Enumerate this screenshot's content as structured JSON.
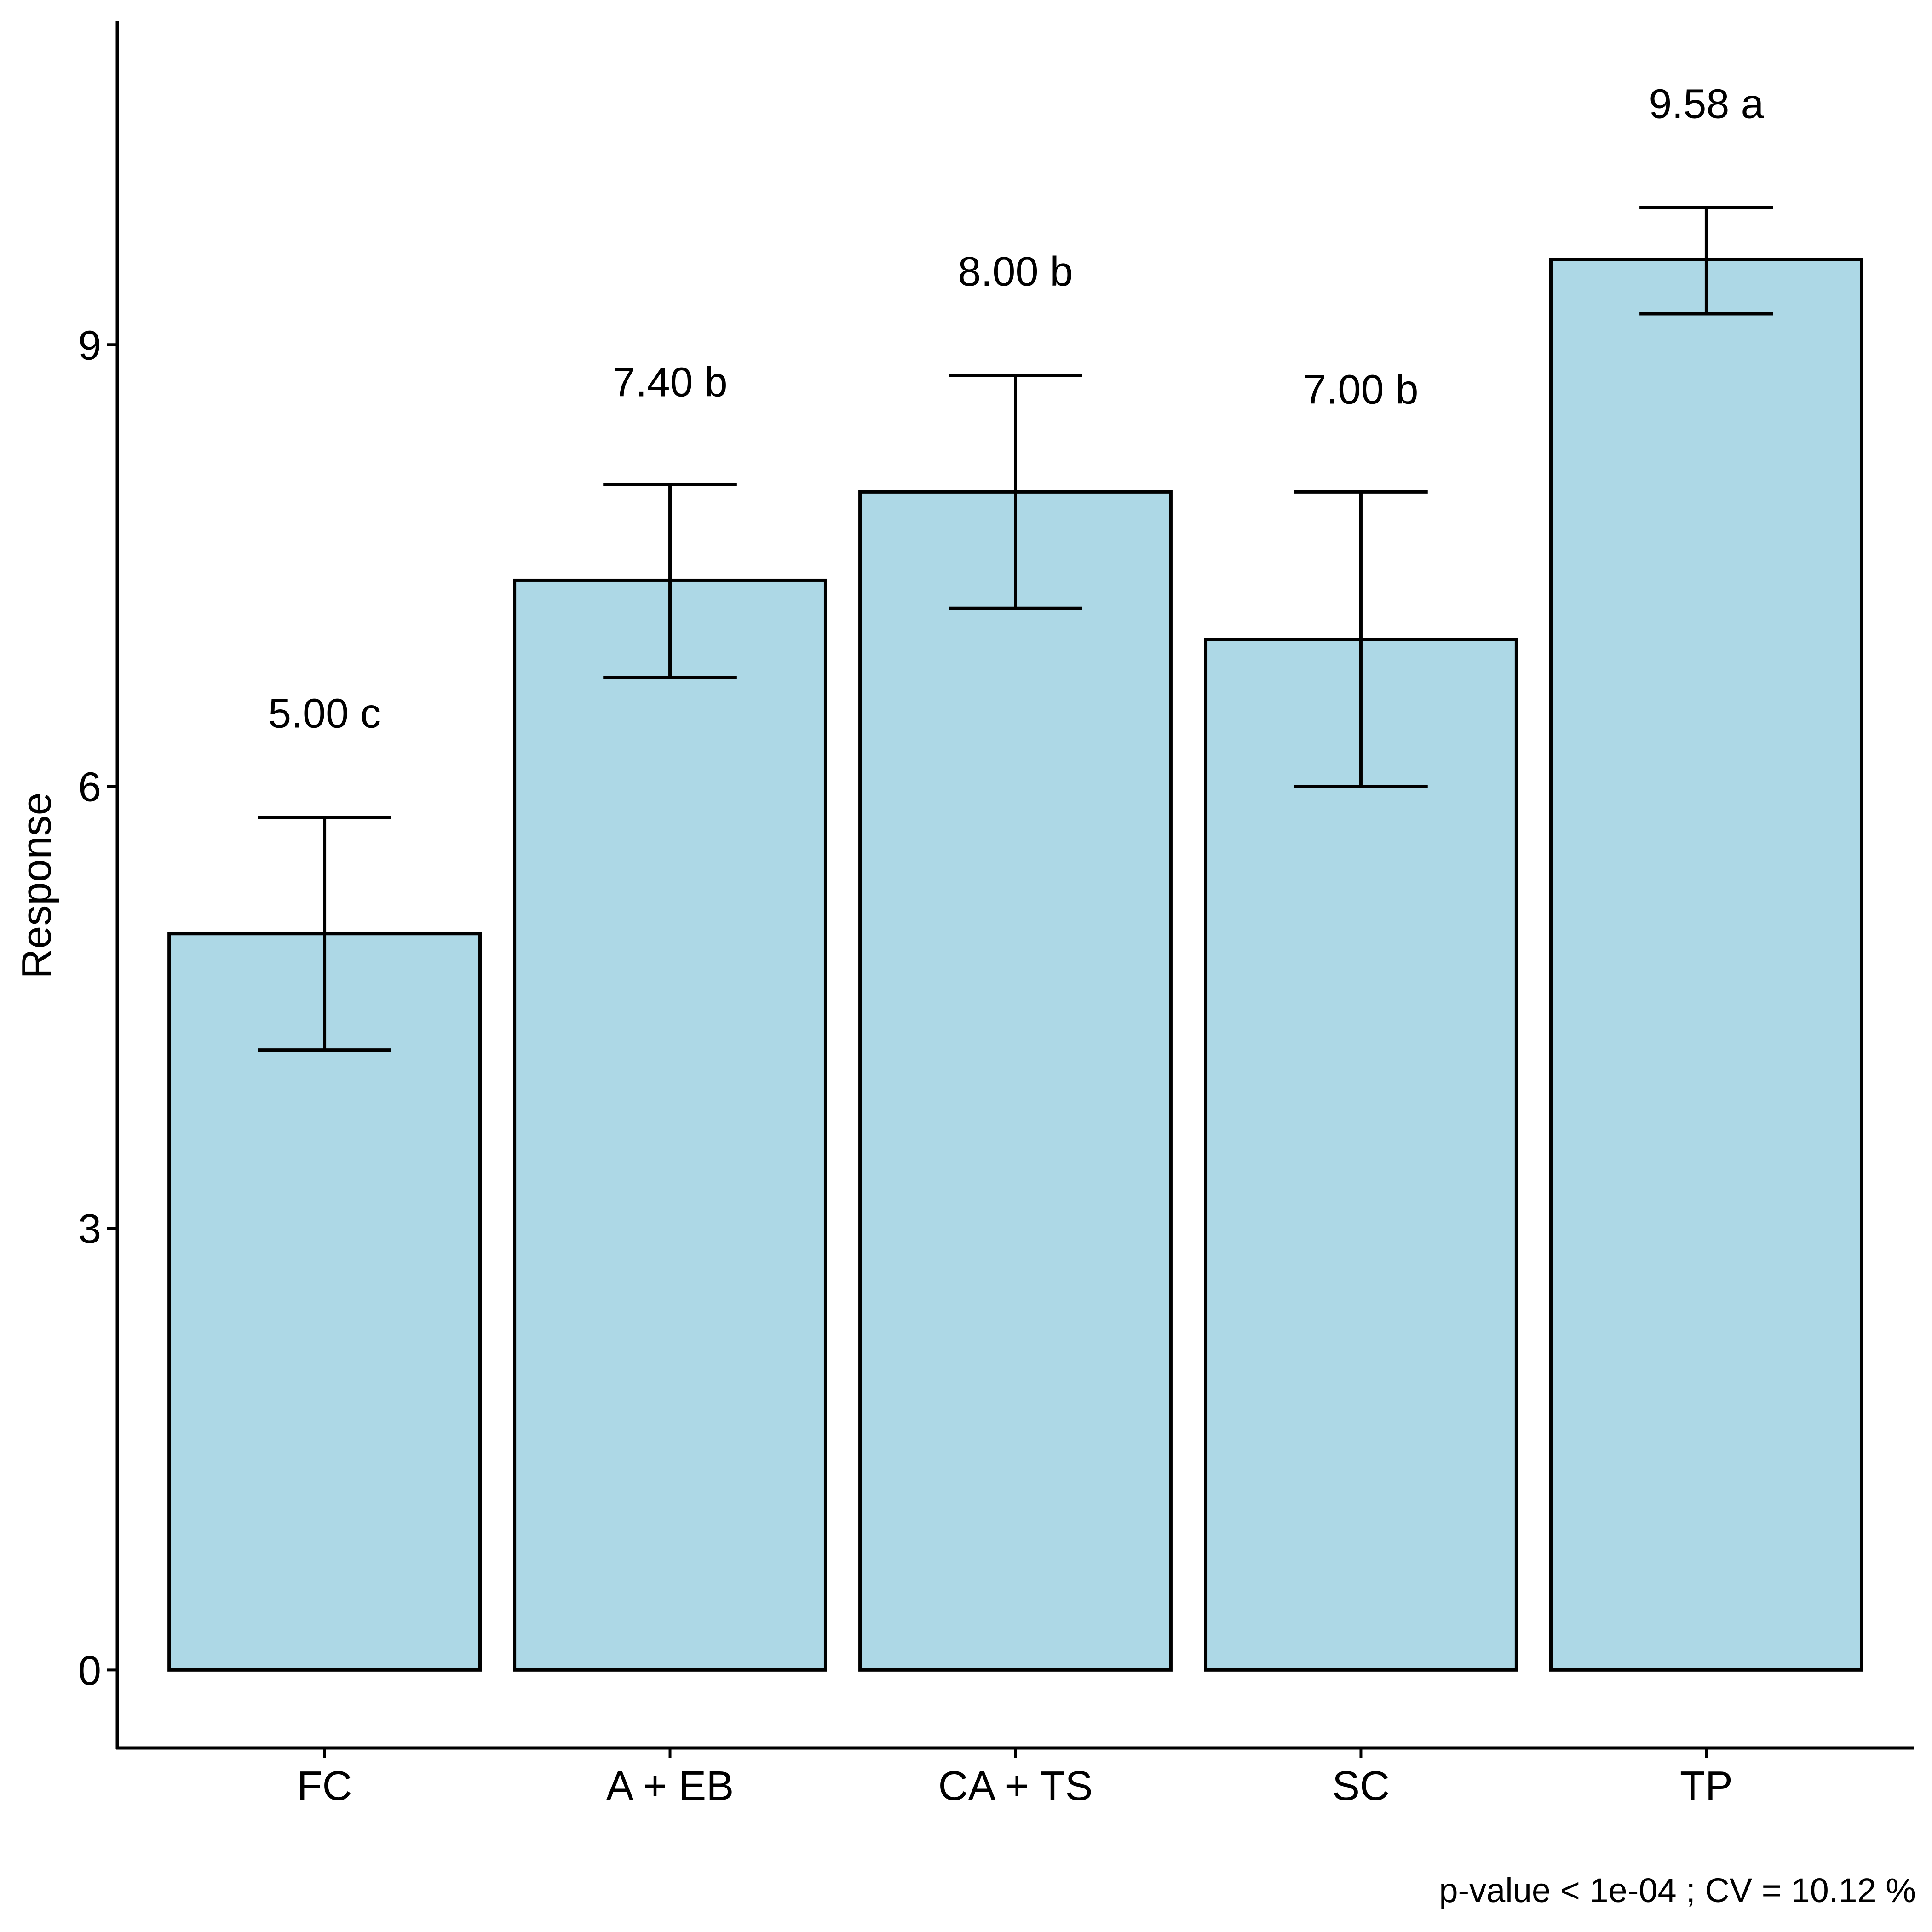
{
  "chart_data": {
    "type": "bar",
    "title": "",
    "xlabel": "",
    "ylabel": "Response",
    "categories": [
      "FC",
      "A + EB",
      "CA + TS",
      "SC",
      "TP"
    ],
    "values": [
      5.0,
      7.4,
      8.0,
      7.0,
      9.58
    ],
    "error_low": [
      4.21,
      6.74,
      7.21,
      6.0,
      9.21
    ],
    "error_high": [
      5.79,
      8.05,
      8.79,
      8.0,
      9.93
    ],
    "labels": [
      "5.00 c",
      "7.40 b",
      "8.00 b",
      "7.00 b",
      "9.58 a"
    ],
    "label_y": [
      6.5,
      8.75,
      9.5,
      8.7,
      10.64
    ],
    "ylim": [
      -0.53,
      11.2
    ],
    "yticks": [
      0,
      3,
      6,
      9
    ],
    "ytick_labels": [
      "0",
      "3",
      "6",
      "9"
    ],
    "grid": false,
    "legend": "none",
    "caption": "p-value < 1e-04 ; CV =  10.12 %",
    "colors": {
      "bar_fill": "#ADD8E6",
      "bar_stroke": "#000000",
      "axis": "#000000",
      "background": "#FFFFFF"
    }
  }
}
